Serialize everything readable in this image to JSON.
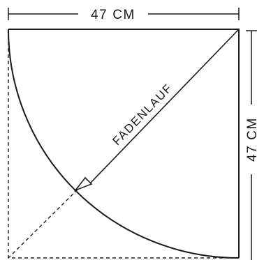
{
  "labels": {
    "width_dimension": "47 CM",
    "height_dimension": "47 CM",
    "grainline": "FADENLAUF"
  },
  "colors": {
    "line": "#1a1a1a",
    "background": "#ffffff"
  }
}
